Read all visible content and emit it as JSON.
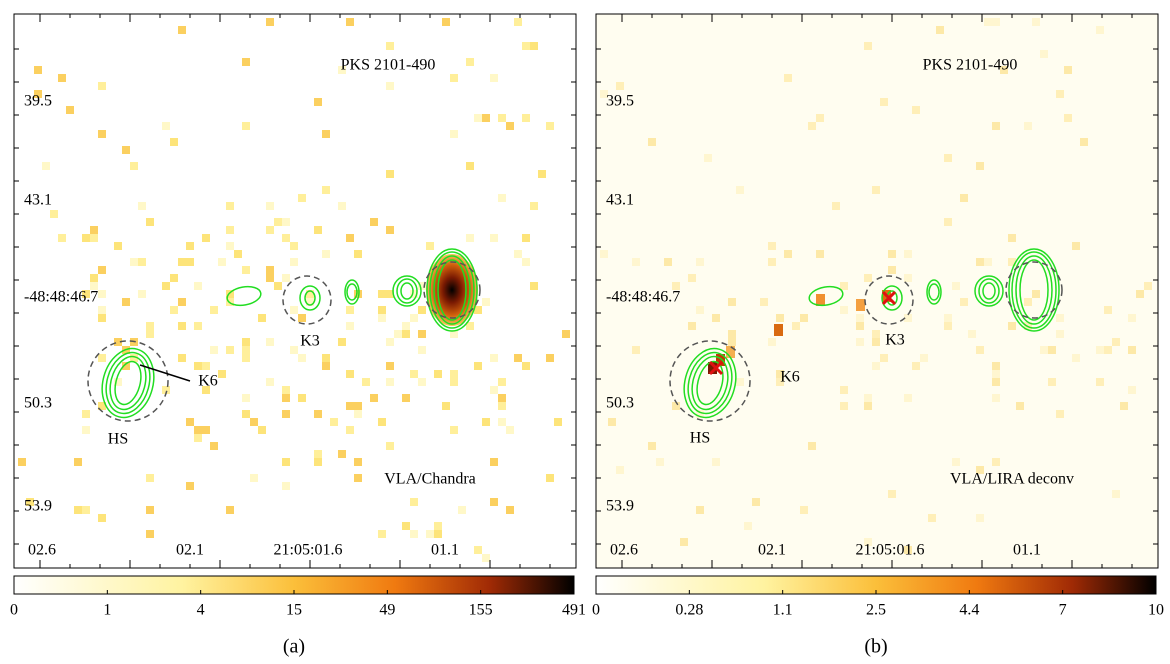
{
  "panels": [
    {
      "title": "PKS 2101-490",
      "label": "VLA/Chandra",
      "y_labels": [
        "39.5",
        "43.1",
        "-48:48:46.7",
        "50.3",
        "53.9"
      ],
      "x_labels": [
        "02.6",
        "02.1",
        "21:05:01.6",
        "01.1"
      ],
      "knots": [
        "K3",
        "K6",
        "HS"
      ],
      "colorbar_ticks": [
        0,
        1,
        4,
        15,
        49,
        155,
        491
      ],
      "caption": "(a)"
    },
    {
      "title": "PKS 2101-490",
      "label": "VLA/LIRA deconv",
      "y_labels": [
        "39.5",
        "43.1",
        "-48:48:46.7",
        "50.3",
        "53.9"
      ],
      "x_labels": [
        "02.6",
        "02.1",
        "21:05:01.6",
        "01.1"
      ],
      "knots": [
        "K3",
        "K6",
        "HS"
      ],
      "colorbar_ticks": [
        0,
        0.28,
        1.1,
        2.5,
        4.4,
        7,
        10
      ],
      "caption": "(b)"
    }
  ]
}
